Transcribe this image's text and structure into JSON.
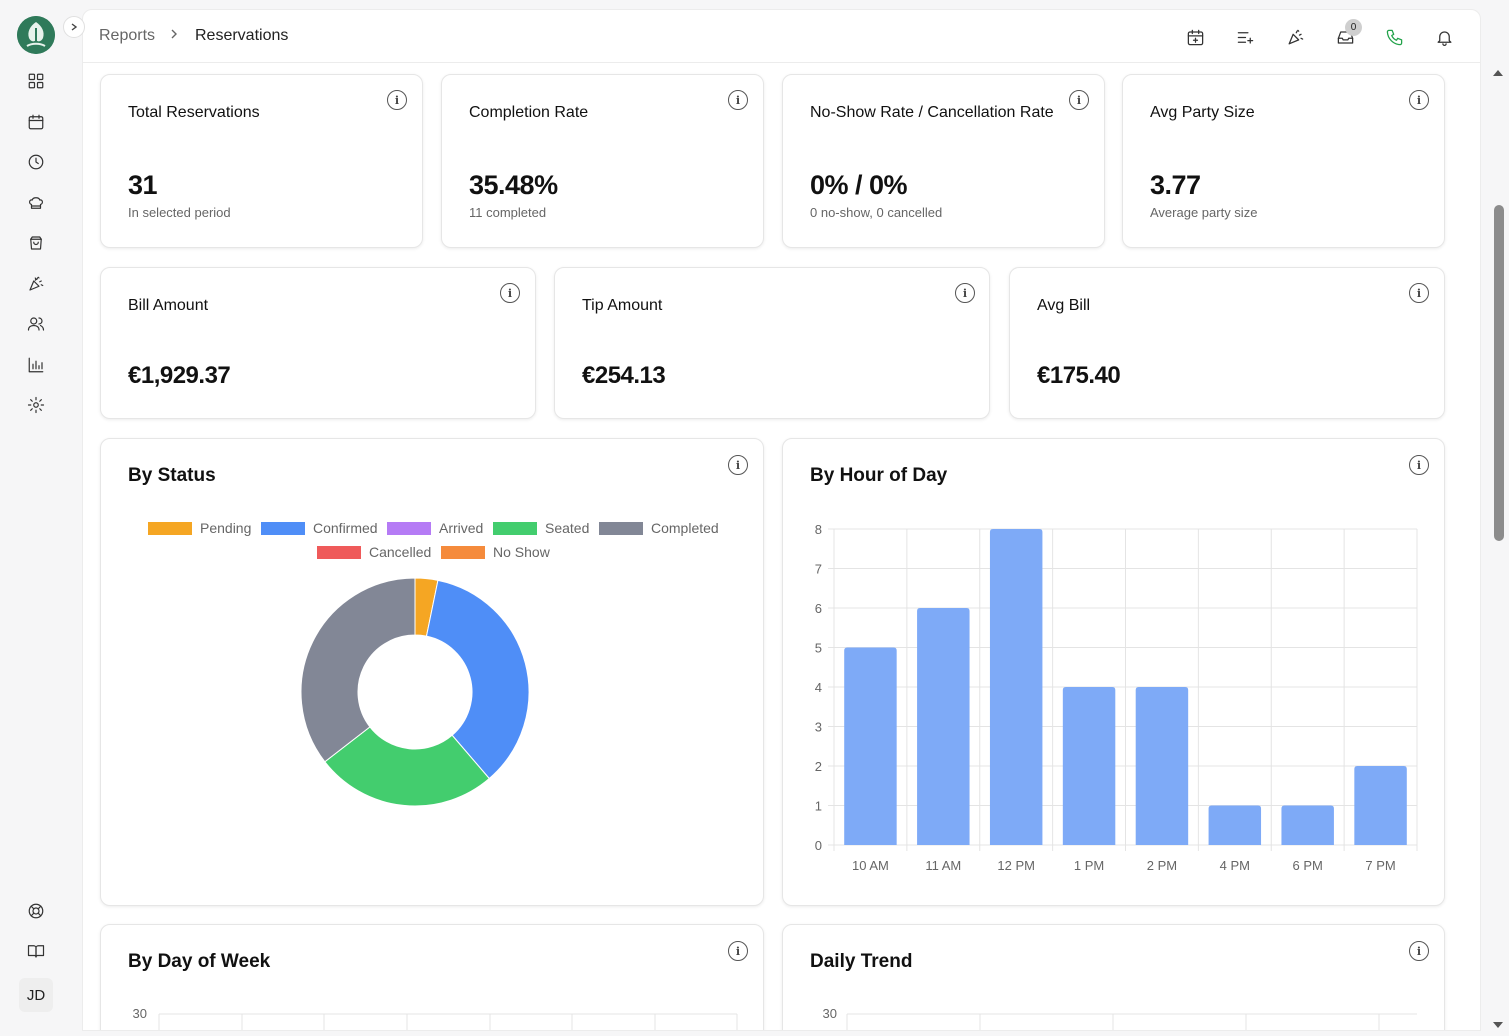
{
  "sidebar": {
    "collapse_icon": "chevron-right-icon",
    "items": [
      "dashboard-grid-icon",
      "calendar-icon",
      "clock-icon",
      "chef-hat-icon",
      "shopping-bag-icon",
      "party-popper-icon",
      "users-icon",
      "bar-chart-icon",
      "gear-icon"
    ],
    "bottom": [
      "life-buoy-icon",
      "book-open-icon"
    ],
    "avatar_initials": "JD"
  },
  "breadcrumb": {
    "parent": "Reports",
    "current": "Reservations"
  },
  "topbar": {
    "icons": [
      "calendar-plus-icon",
      "list-plus-icon",
      "party-popper-icon",
      "inbox-icon",
      "phone-icon",
      "bell-icon"
    ],
    "inbox_count": "0"
  },
  "kpis": [
    {
      "title": "Total Reservations",
      "value": "31",
      "sub": "In selected period"
    },
    {
      "title": "Completion Rate",
      "value": "35.48%",
      "sub": "11 completed"
    },
    {
      "title": "No-Show Rate / Cancellation Rate",
      "value": "0% / 0%",
      "sub": "0 no-show, 0 cancelled"
    },
    {
      "title": "Avg Party Size",
      "value": "3.77",
      "sub": "Average party size"
    }
  ],
  "money": [
    {
      "title": "Bill Amount",
      "value": "€1,929.37"
    },
    {
      "title": "Tip Amount",
      "value": "€254.13"
    },
    {
      "title": "Avg Bill",
      "value": "€175.40"
    }
  ],
  "info_icon": "i",
  "status_chart": {
    "title": "By Status"
  },
  "hour_chart": {
    "title": "By Hour of Day"
  },
  "dow_chart": {
    "title": "By Day of Week",
    "ytop": "30"
  },
  "trend_chart": {
    "title": "Daily Trend",
    "ytop": "30"
  },
  "chart_data": [
    {
      "type": "pie",
      "title": "By Status",
      "categories": [
        "Pending",
        "Confirmed",
        "Arrived",
        "Seated",
        "Completed",
        "Cancelled",
        "No Show"
      ],
      "values": [
        1,
        11,
        0,
        8,
        11,
        0,
        0
      ],
      "colors": [
        "#f5a623",
        "#4f8ef7",
        "#b57bf5",
        "#43cd6e",
        "#828796",
        "#ef5a5a",
        "#f58b3c"
      ],
      "legend": "top"
    },
    {
      "type": "bar",
      "title": "By Hour of Day",
      "categories": [
        "10 AM",
        "11 AM",
        "12 PM",
        "1 PM",
        "2 PM",
        "4 PM",
        "6 PM",
        "7 PM"
      ],
      "values": [
        5,
        6,
        8,
        4,
        4,
        1,
        1,
        2
      ],
      "ylim": [
        0,
        8
      ],
      "yticks": [
        0,
        1,
        2,
        3,
        4,
        5,
        6,
        7,
        8
      ],
      "color": "#7eaaf7",
      "grid": true
    }
  ]
}
